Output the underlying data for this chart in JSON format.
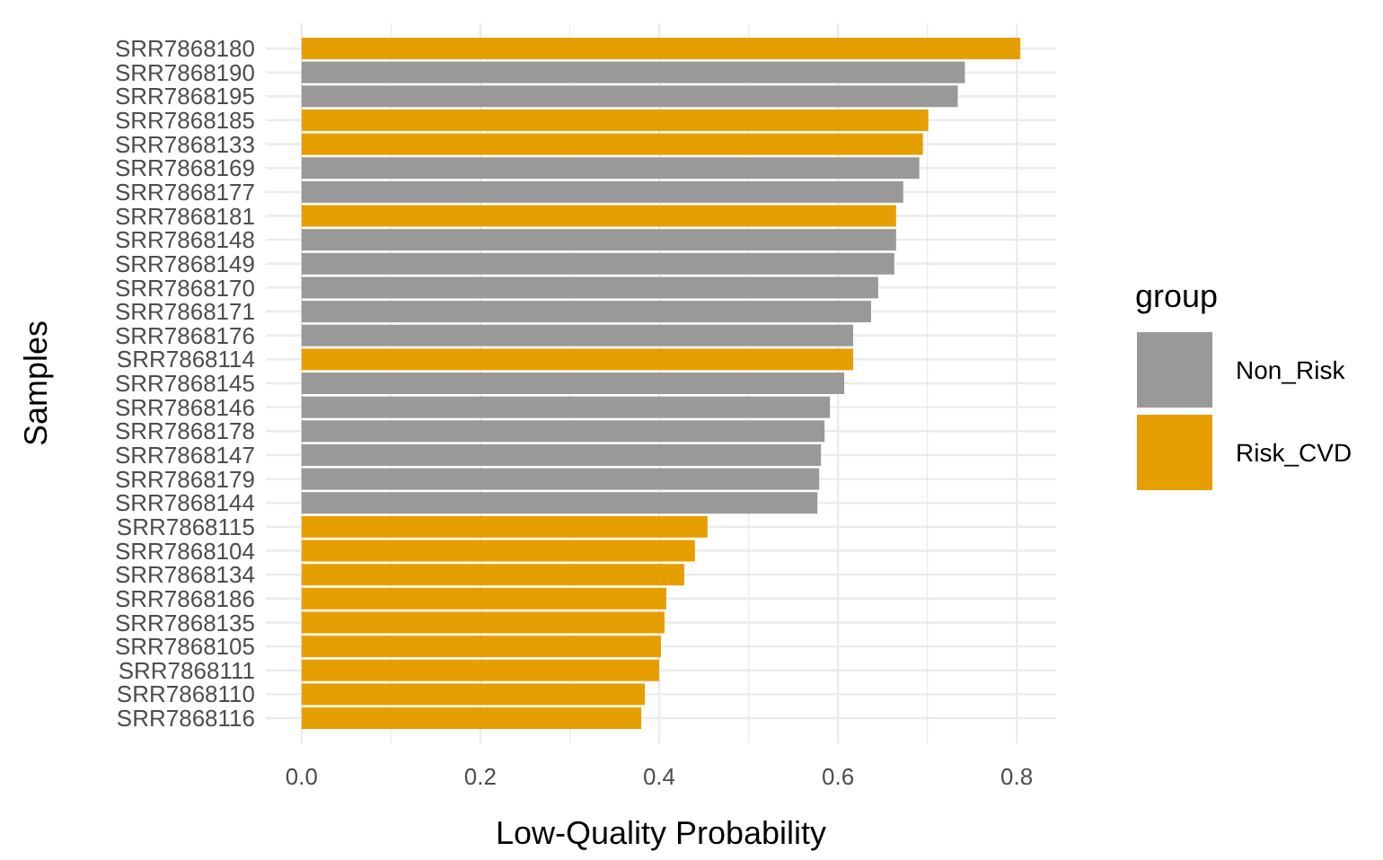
{
  "chart_data": {
    "type": "bar",
    "orientation": "horizontal",
    "xlabel": "Low-Quality Probability",
    "ylabel": "Samples",
    "legend_title": "group",
    "categories": [
      "SRR7868180",
      "SRR7868190",
      "SRR7868195",
      "SRR7868185",
      "SRR7868133",
      "SRR7868169",
      "SRR7868177",
      "SRR7868181",
      "SRR7868148",
      "SRR7868149",
      "SRR7868170",
      "SRR7868171",
      "SRR7868176",
      "SRR7868114",
      "SRR7868145",
      "SRR7868146",
      "SRR7868178",
      "SRR7868147",
      "SRR7868179",
      "SRR7868144",
      "SRR7868115",
      "SRR7868104",
      "SRR7868134",
      "SRR7868186",
      "SRR7868135",
      "SRR7868105",
      "SRR7868111",
      "SRR7868110",
      "SRR7868116"
    ],
    "series": [
      {
        "name": "Non_Risk",
        "color": "#999999",
        "values": [
          null,
          0.742,
          0.734,
          null,
          null,
          0.691,
          0.673,
          null,
          0.665,
          0.663,
          0.645,
          0.637,
          0.617,
          null,
          0.607,
          0.591,
          0.585,
          0.581,
          0.579,
          0.577,
          null,
          null,
          null,
          null,
          null,
          null,
          null,
          null,
          null
        ]
      },
      {
        "name": "Risk_CVD",
        "color": "#e69f00",
        "values": [
          0.804,
          null,
          null,
          0.701,
          0.695,
          null,
          null,
          0.665,
          null,
          null,
          null,
          null,
          null,
          0.617,
          null,
          null,
          null,
          null,
          null,
          null,
          0.454,
          0.44,
          0.428,
          0.408,
          0.406,
          0.402,
          0.4,
          0.384,
          0.38
        ]
      }
    ],
    "xlim": [
      -0.04,
      0.844
    ],
    "xticks": [
      {
        "value": 0,
        "label": "0.0"
      },
      0.2,
      0.4,
      0.6,
      0.8
    ],
    "grid": true,
    "legend": "right"
  }
}
